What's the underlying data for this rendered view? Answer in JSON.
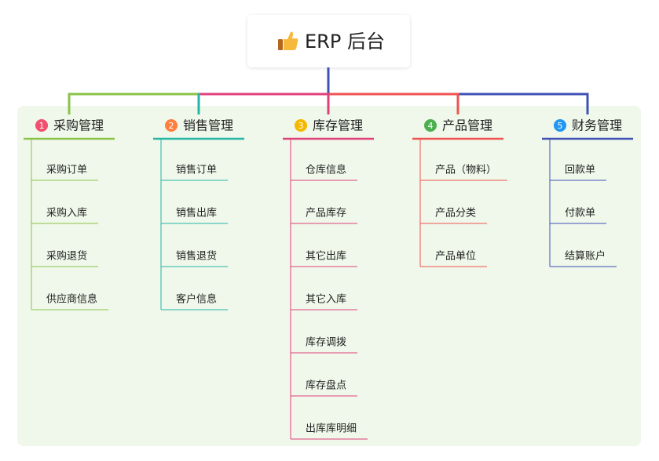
{
  "root": {
    "title": "ERP 后台"
  },
  "branches": [
    {
      "number": 1,
      "label": "采购管理",
      "color": "#8bc34a",
      "badge_color": "#f0506e",
      "children": [
        "采购订单",
        "采购入库",
        "采购退货",
        "供应商信息"
      ]
    },
    {
      "number": 2,
      "label": "销售管理",
      "color": "#26b5a6",
      "badge_color": "#ff7f3f",
      "children": [
        "销售订单",
        "销售出库",
        "销售退货",
        "客户信息"
      ]
    },
    {
      "number": 3,
      "label": "库存管理",
      "color": "#e0407a",
      "badge_color": "#f5b800",
      "children": [
        "仓库信息",
        "产品库存",
        "其它出库",
        "其它入库",
        "库存调拨",
        "库存盘点",
        "出库库明细"
      ]
    },
    {
      "number": 4,
      "label": "产品管理",
      "color": "#ef5350",
      "badge_color": "#4caf50",
      "children": [
        "产品（物料）",
        "产品分类",
        "产品单位"
      ]
    },
    {
      "number": 5,
      "label": "财务管理",
      "color": "#3f51b5",
      "badge_color": "#2196f3",
      "children": [
        "回款单",
        "付款单",
        "结算账户"
      ]
    }
  ]
}
